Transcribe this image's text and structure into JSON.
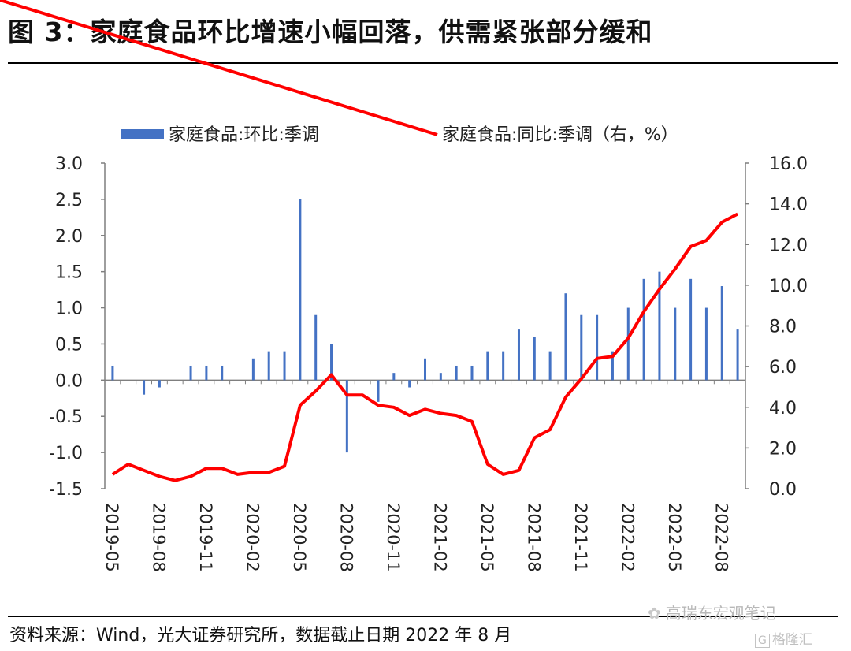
{
  "header": {
    "title": "图 3：家庭食品环比增速小幅回落，供需紧张部分缓和"
  },
  "footer": {
    "source": "资料来源：Wind，光大证券研究所，数据截止日期 2022 年 8 月"
  },
  "watermark": {
    "text": "高瑞东宏观笔记",
    "logo_text": "格隆汇",
    "logo_mark": "G"
  },
  "colors": {
    "bar": "#4472c4",
    "line": "#ff0000",
    "axis": "#7f7f7f"
  },
  "chart_data": {
    "type": "bar+line",
    "x": [
      "2019-05",
      "2019-06",
      "2019-07",
      "2019-08",
      "2019-09",
      "2019-10",
      "2019-11",
      "2019-12",
      "2020-01",
      "2020-02",
      "2020-03",
      "2020-04",
      "2020-05",
      "2020-06",
      "2020-07",
      "2020-08",
      "2020-09",
      "2020-10",
      "2020-11",
      "2020-12",
      "2021-01",
      "2021-02",
      "2021-03",
      "2021-04",
      "2021-05",
      "2021-06",
      "2021-07",
      "2021-08",
      "2021-09",
      "2021-10",
      "2021-11",
      "2021-12",
      "2022-01",
      "2022-02",
      "2022-03",
      "2022-04",
      "2022-05",
      "2022-06",
      "2022-07",
      "2022-08",
      "2022-09"
    ],
    "x_tick_labels": [
      "2019-05",
      "2019-08",
      "2019-11",
      "2020-02",
      "2020-05",
      "2020-08",
      "2020-11",
      "2021-02",
      "2021-05",
      "2021-08",
      "2021-11",
      "2022-02",
      "2022-05",
      "2022-08"
    ],
    "series": [
      {
        "name": "家庭食品:环比:季调",
        "type": "bar",
        "axis": "left",
        "values": [
          0.2,
          0.0,
          -0.2,
          -0.1,
          0.0,
          0.2,
          0.2,
          0.2,
          0.0,
          0.3,
          0.4,
          0.4,
          2.5,
          0.9,
          0.5,
          -1.0,
          0.0,
          -0.3,
          0.1,
          -0.1,
          0.3,
          0.1,
          0.2,
          0.2,
          0.4,
          0.4,
          0.7,
          0.6,
          0.4,
          1.2,
          0.9,
          0.9,
          0.4,
          1.0,
          1.4,
          1.5,
          1.0,
          1.4,
          1.0,
          1.3,
          0.7
        ]
      },
      {
        "name": "家庭食品:同比:季调（右，%）",
        "type": "line",
        "axis": "right",
        "values": [
          0.7,
          1.2,
          0.9,
          0.6,
          0.4,
          0.6,
          1.0,
          1.0,
          0.7,
          0.8,
          0.8,
          1.1,
          4.1,
          4.8,
          5.6,
          4.6,
          4.6,
          4.1,
          4.0,
          3.6,
          3.9,
          3.7,
          3.6,
          3.3,
          1.2,
          0.7,
          0.9,
          2.5,
          2.9,
          4.5,
          5.4,
          6.4,
          6.5,
          7.4,
          8.7,
          9.8,
          10.8,
          11.9,
          12.2,
          13.1,
          13.5
        ]
      }
    ],
    "y_left": {
      "lim": [
        -1.5,
        3.0
      ],
      "ticks": [
        "-1.5",
        "-1.0",
        "-0.5",
        "0.0",
        "0.5",
        "1.0",
        "1.5",
        "2.0",
        "2.5",
        "3.0"
      ]
    },
    "y_right": {
      "lim": [
        0,
        16
      ],
      "ticks": [
        "0.0",
        "2.0",
        "4.0",
        "6.0",
        "8.0",
        "10.0",
        "12.0",
        "14.0",
        "16.0"
      ]
    },
    "legend_position": "top",
    "grid": false
  }
}
